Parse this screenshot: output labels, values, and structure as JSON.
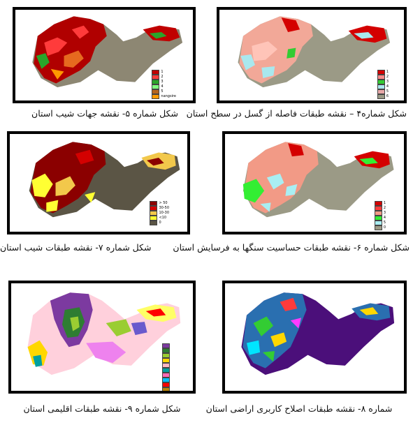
{
  "figures": {
    "fig5": {
      "caption": "شکل شماره ۵- نقشه جهات شیب استان",
      "legend": [
        {
          "label": "1",
          "color": "#c00000"
        },
        {
          "label": "2",
          "color": "#ff3b3b"
        },
        {
          "label": "3",
          "color": "#2aa52a"
        },
        {
          "label": "4",
          "color": "#7fff7f"
        },
        {
          "label": "5",
          "color": "#b5651d"
        },
        {
          "label": "nangsire",
          "color": "#ff9900"
        }
      ]
    },
    "fig4": {
      "caption": "شکل شماره۴ – نقشه طبقات فاصله از گسل در سطح استان",
      "legend": [
        {
          "label": "1",
          "color": "#d40000"
        },
        {
          "label": "2",
          "color": "#ff8a8a"
        },
        {
          "label": "3",
          "color": "#33cc33"
        },
        {
          "label": "4",
          "color": "#a9e8ee"
        },
        {
          "label": "5",
          "color": "#e8a8a8"
        },
        {
          "label": "6",
          "color": "#9b9a86"
        }
      ]
    },
    "fig7": {
      "caption": "شکل شماره  ۷- نقشه طبقات شیب استان",
      "legend": [
        {
          "label": "> 50",
          "color": "#8b0000"
        },
        {
          "label": "30-50",
          "color": "#d40000"
        },
        {
          "label": "10-30",
          "color": "#f2c84b"
        },
        {
          "label": "<10",
          "color": "#ffff33"
        },
        {
          "label": "0",
          "color": "#5b5545"
        }
      ]
    },
    "fig6": {
      "caption": "شکل شماره ۶- نقشه طبقات حساسیت سنگها به فرسایش استان",
      "legend": [
        {
          "label": "1",
          "color": "#d40000"
        },
        {
          "label": "2",
          "color": "#ff3b3b"
        },
        {
          "label": "3",
          "color": "#f29a86"
        },
        {
          "label": "4",
          "color": "#33ee33"
        },
        {
          "label": "5",
          "color": "#a9eef2"
        },
        {
          "label": "0",
          "color": "#9b9a86"
        }
      ]
    },
    "fig9": {
      "caption": "شکل شماره ۹- نقشه طبقات اقلیمی استان",
      "legend_colors": [
        "#7c3aa0",
        "#2e7d32",
        "#9acd32",
        "#ffd700",
        "#ffb6c1",
        "#00a0a0",
        "#ff69b4",
        "#00bfff",
        "#ff0000",
        "#b8860b",
        "#c0c0c0",
        "#6a5acd",
        "#ffff66",
        "#ee82ee"
      ]
    },
    "fig8": {
      "caption": "شماره ۸- نقشه طبقات اصلاح کاربری اراضی استان"
    }
  }
}
